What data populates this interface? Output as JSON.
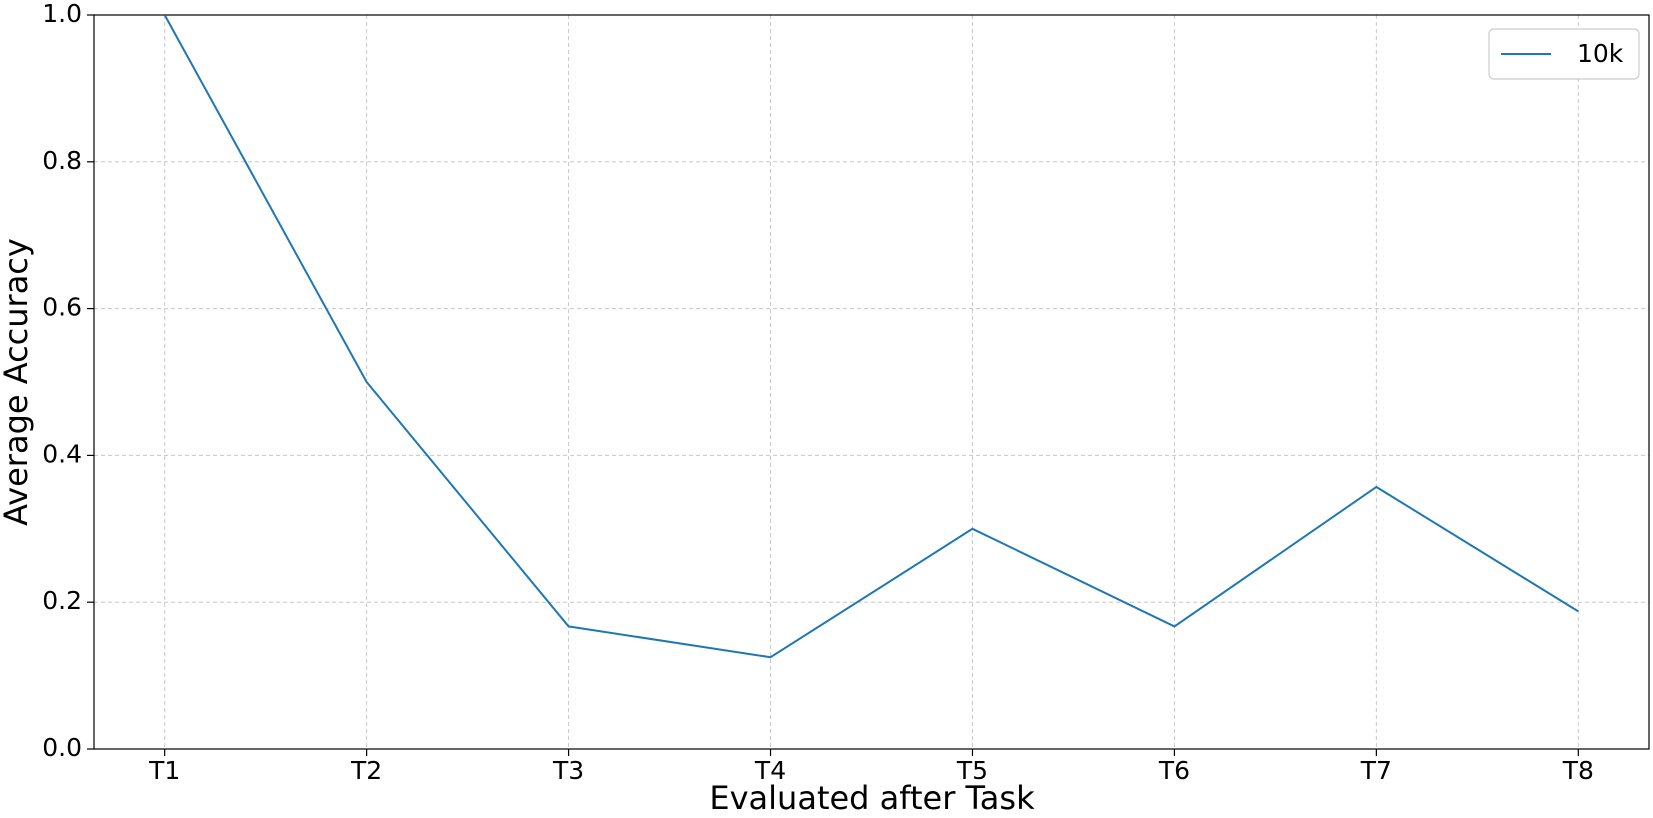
{
  "chart_data": {
    "type": "line",
    "xlabel": "Evaluated after Task",
    "ylabel": "Average Accuracy",
    "categories": [
      "T1",
      "T2",
      "T3",
      "T4",
      "T5",
      "T6",
      "T7",
      "T8"
    ],
    "series": [
      {
        "name": "10k",
        "color": "#1f77b4",
        "values": [
          1.0,
          0.5,
          0.167,
          0.125,
          0.3,
          0.167,
          0.357,
          0.1875
        ]
      }
    ],
    "ylim": [
      0,
      1
    ],
    "yticks": [
      {
        "value": 0,
        "label": "0.0"
      },
      0.2,
      0.4,
      0.6,
      0.8,
      {
        "value": 1,
        "label": "1.0"
      }
    ],
    "grid": true,
    "legend": "upper right"
  }
}
